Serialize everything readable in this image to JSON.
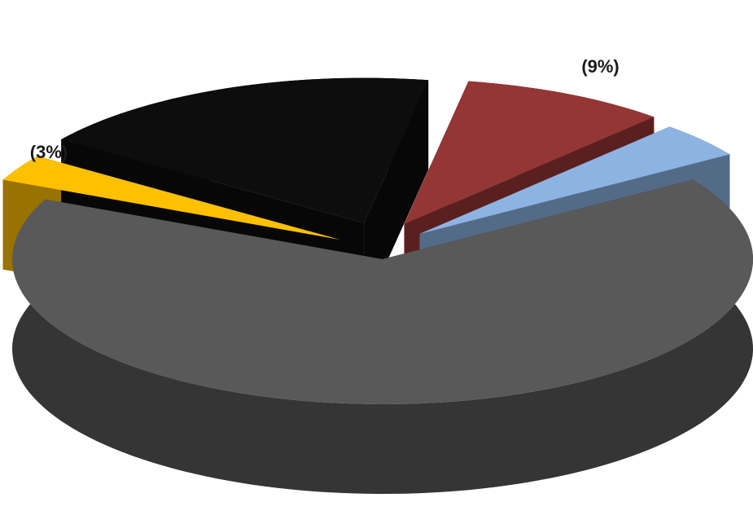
{
  "chart_data": {
    "type": "pie",
    "categories": [
      null,
      null,
      null,
      null,
      null
    ],
    "values": [
      9,
      4,
      66,
      3,
      18
    ],
    "value_labels": [
      "(9%)",
      null,
      null,
      "(3%)",
      null
    ],
    "colors": [
      "#943634",
      "#8db3e2",
      "#595959",
      "#ffc000",
      "#0d0d0d"
    ]
  }
}
